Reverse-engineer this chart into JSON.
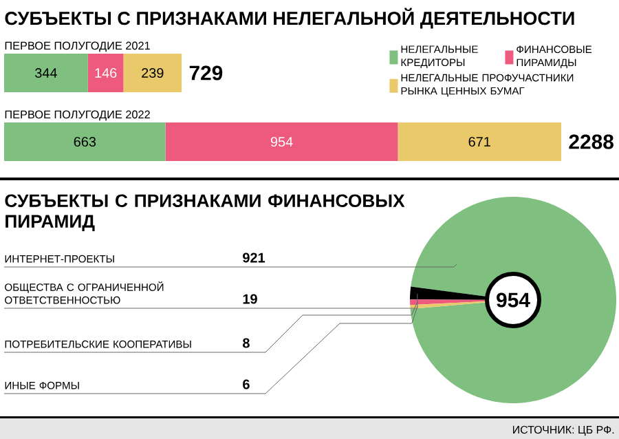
{
  "chart_data": [
    {
      "type": "bar",
      "orientation": "horizontal",
      "stacked": true,
      "title": "СУБЪЕКТЫ С ПРИЗНАКАМИ НЕЛЕГАЛЬНОЙ ДЕЯТЕЛЬНОСТИ",
      "categories": [
        "ПЕРВОЕ ПОЛУГОДИЕ 2021",
        "ПЕРВОЕ ПОЛУГОДИЕ 2022"
      ],
      "series": [
        {
          "name": "НЕЛЕГАЛЬНЫЕ КРЕДИТОРЫ",
          "color": "#7fbf7f",
          "values": [
            344,
            663
          ]
        },
        {
          "name": "ФИНАНСОВЫЕ ПИРАМИДЫ",
          "color": "#ee5a7e",
          "values": [
            146,
            954
          ]
        },
        {
          "name": "НЕЛЕГАЛЬНЫЕ ПРОФУЧАСТНИКИ РЫНКА ЦЕННЫХ БУМАГ",
          "color": "#e9c96a",
          "values": [
            239,
            671
          ]
        }
      ],
      "data_labels": true,
      "totals": [
        "729",
        "2288"
      ],
      "legend": "top right"
    },
    {
      "type": "donut",
      "title": "СУБЪЕКТЫ С ПРИЗНАКАМИ ФИНАНСОВЫХ ПИРАМИД",
      "categories": [
        "ИНТЕРНЕТ-ПРОЕКТЫ",
        "ОБЩЕСТВА С ОГРАНИЧЕННОЙ ОТВЕТСТВЕННОСТЬЮ",
        "ПОТРЕБИТЕЛЬСКИЕ КООПЕРАТИВЫ",
        "ИНЫЕ ФОРМЫ"
      ],
      "values": [
        921,
        19,
        8,
        6
      ],
      "data_labels": true,
      "colors": [
        "#7fbf7f",
        "#000000",
        "#ee5a7e",
        "#e9c96a"
      ],
      "annotations": [
        "954",
        "ИСТОЧНИК: ЦБ РФ."
      ]
    }
  ]
}
